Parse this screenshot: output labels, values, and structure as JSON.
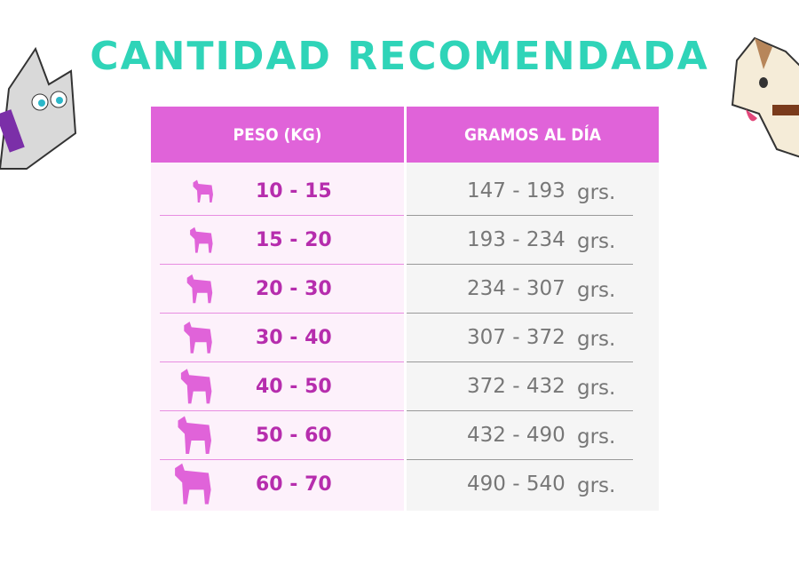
{
  "header": {
    "title": "CANTIDAD RECOMENDADA"
  },
  "table": {
    "columns": [
      "PESO (KG)",
      "GRAMOS AL DÍA"
    ],
    "rows": [
      [
        "10 - 15",
        "147 - 193",
        "grs."
      ],
      [
        "15 - 20",
        "193 - 234",
        "grs."
      ],
      [
        "20 - 30",
        "234 - 307",
        "grs."
      ],
      [
        "30 - 40",
        "307 - 372",
        "grs."
      ],
      [
        "40 - 50",
        "372 - 432",
        "grs."
      ],
      [
        "50 - 60",
        "432 - 490",
        "grs."
      ],
      [
        "60 - 70",
        "490 - 540",
        "grs."
      ]
    ]
  }
}
